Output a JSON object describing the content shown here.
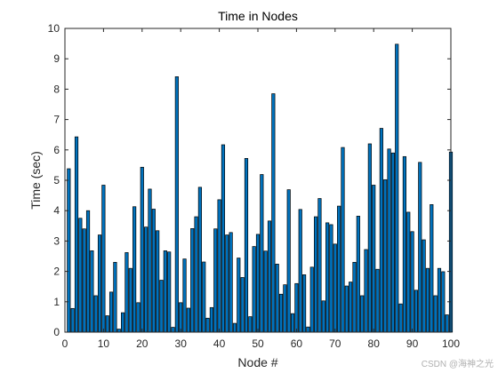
{
  "watermark": "CSDN @海神之光",
  "chart_data": {
    "type": "bar",
    "title": "Time in Nodes",
    "xlabel": "Node #",
    "ylabel": "Time (sec)",
    "xlim": [
      0,
      100
    ],
    "ylim": [
      0,
      10
    ],
    "x_ticks": [
      0,
      10,
      20,
      30,
      40,
      50,
      60,
      70,
      80,
      90,
      100
    ],
    "y_ticks": [
      0,
      1,
      2,
      3,
      4,
      5,
      6,
      7,
      8,
      9,
      10
    ],
    "grid": false,
    "bar_color": "#0072BD",
    "edge_color": "#000000",
    "categories": [
      1,
      2,
      3,
      4,
      5,
      6,
      7,
      8,
      9,
      10,
      11,
      12,
      13,
      14,
      15,
      16,
      17,
      18,
      19,
      20,
      21,
      22,
      23,
      24,
      25,
      26,
      27,
      28,
      29,
      30,
      31,
      32,
      33,
      34,
      35,
      36,
      37,
      38,
      39,
      40,
      41,
      42,
      43,
      44,
      45,
      46,
      47,
      48,
      49,
      50,
      51,
      52,
      53,
      54,
      55,
      56,
      57,
      58,
      59,
      60,
      61,
      62,
      63,
      64,
      65,
      66,
      67,
      68,
      69,
      70,
      71,
      72,
      73,
      74,
      75,
      76,
      77,
      78,
      79,
      80,
      81,
      82,
      83,
      84,
      85,
      86,
      87,
      88,
      89,
      90,
      91,
      92,
      93,
      94,
      95,
      96,
      97,
      98,
      99,
      100
    ],
    "values": [
      5.38,
      0.78,
      6.43,
      3.75,
      3.4,
      4.0,
      2.68,
      1.2,
      3.2,
      4.84,
      0.54,
      1.32,
      2.3,
      0.1,
      0.64,
      2.62,
      2.1,
      4.13,
      0.97,
      5.43,
      3.46,
      4.71,
      4.05,
      3.34,
      1.71,
      2.68,
      2.64,
      0.16,
      8.41,
      0.97,
      2.41,
      0.79,
      3.41,
      3.8,
      4.77,
      2.31,
      0.46,
      0.81,
      3.4,
      4.36,
      6.17,
      3.2,
      3.28,
      0.29,
      2.44,
      1.8,
      5.72,
      0.51,
      2.82,
      3.22,
      5.19,
      2.67,
      3.66,
      7.85,
      2.24,
      1.25,
      1.56,
      4.69,
      0.61,
      1.6,
      4.04,
      1.89,
      0.17,
      2.14,
      3.8,
      4.4,
      1.03,
      3.6,
      3.54,
      2.9,
      4.15,
      6.08,
      1.52,
      1.65,
      2.3,
      3.82,
      1.2,
      2.72,
      6.2,
      4.84,
      2.07,
      6.71,
      5.02,
      6.03,
      5.9,
      9.48,
      0.93,
      5.78,
      3.95,
      3.31,
      1.38,
      5.59,
      3.04,
      2.1,
      4.2,
      1.2,
      2.1,
      1.99,
      0.57,
      5.93
    ]
  }
}
